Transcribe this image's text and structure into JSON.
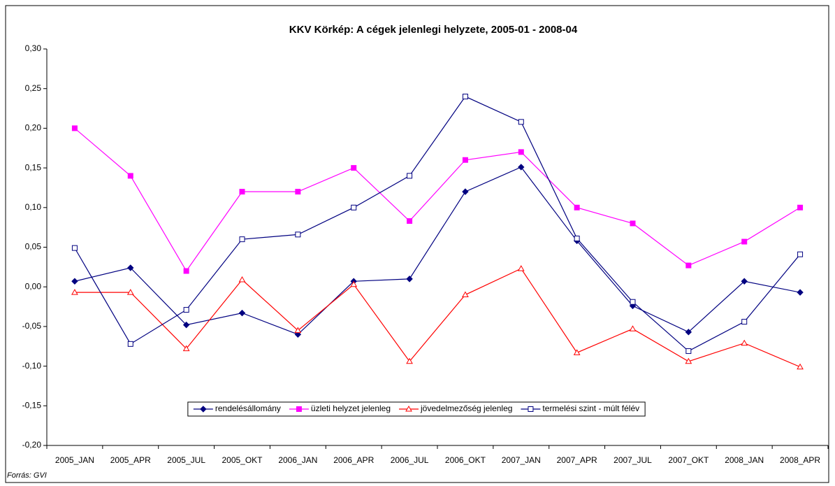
{
  "chart_data": {
    "type": "line",
    "title": "KKV Körkép: A cégek jelenlegi helyzete, 2005-01 - 2008-04",
    "source": "Forrás: GVI",
    "categories": [
      "2005_JAN",
      "2005_APR",
      "2005_JUL",
      "2005_OKT",
      "2006_JAN",
      "2006_APR",
      "2006_JUL",
      "2006_OKT",
      "2007_JAN",
      "2007_APR",
      "2007_JUL",
      "2007_OKT",
      "2008_JAN",
      "2008_APR"
    ],
    "series": [
      {
        "name": "rendelésállomány",
        "color": "#000080",
        "marker": "diamond",
        "values": [
          0.007,
          0.024,
          -0.048,
          -0.033,
          -0.06,
          0.007,
          0.01,
          0.12,
          0.151,
          0.058,
          -0.024,
          -0.057,
          0.007,
          -0.007
        ]
      },
      {
        "name": "üzleti helyzet jelenleg",
        "color": "#ff00ff",
        "marker": "square",
        "values": [
          0.2,
          0.14,
          0.02,
          0.12,
          0.12,
          0.15,
          0.083,
          0.16,
          0.17,
          0.1,
          0.08,
          0.027,
          0.057,
          0.1
        ]
      },
      {
        "name": "jövedelmezőség jelenleg",
        "color": "#ff0000",
        "marker": "triangle-open",
        "values": [
          -0.007,
          -0.007,
          -0.078,
          0.009,
          -0.055,
          0.003,
          -0.094,
          -0.01,
          0.023,
          -0.083,
          -0.053,
          -0.094,
          -0.071,
          -0.101
        ]
      },
      {
        "name": "termelési szint - múlt félév",
        "color": "#000080",
        "marker": "square-open",
        "values": [
          0.049,
          -0.072,
          -0.029,
          0.06,
          0.066,
          0.1,
          0.14,
          0.24,
          0.208,
          0.061,
          -0.019,
          -0.081,
          -0.044,
          0.041
        ]
      }
    ],
    "ylim": [
      -0.2,
      0.3
    ],
    "yticks": [
      {
        "value": -0.2,
        "label": "-0,20"
      },
      {
        "value": -0.15,
        "label": "-0,15"
      },
      {
        "value": -0.1,
        "label": "-0,10"
      },
      {
        "value": -0.05,
        "label": "-0,05"
      },
      {
        "value": 0,
        "label": "0,00"
      },
      {
        "value": 0.05,
        "label": "0,05"
      },
      {
        "value": 0.1,
        "label": "0,10"
      },
      {
        "value": 0.15,
        "label": "0,15"
      },
      {
        "value": 0.2,
        "label": "0,20"
      },
      {
        "value": 0.25,
        "label": "0,25"
      },
      {
        "value": 0.3,
        "label": "0,30"
      }
    ],
    "grid": false,
    "legend": "bottom"
  }
}
